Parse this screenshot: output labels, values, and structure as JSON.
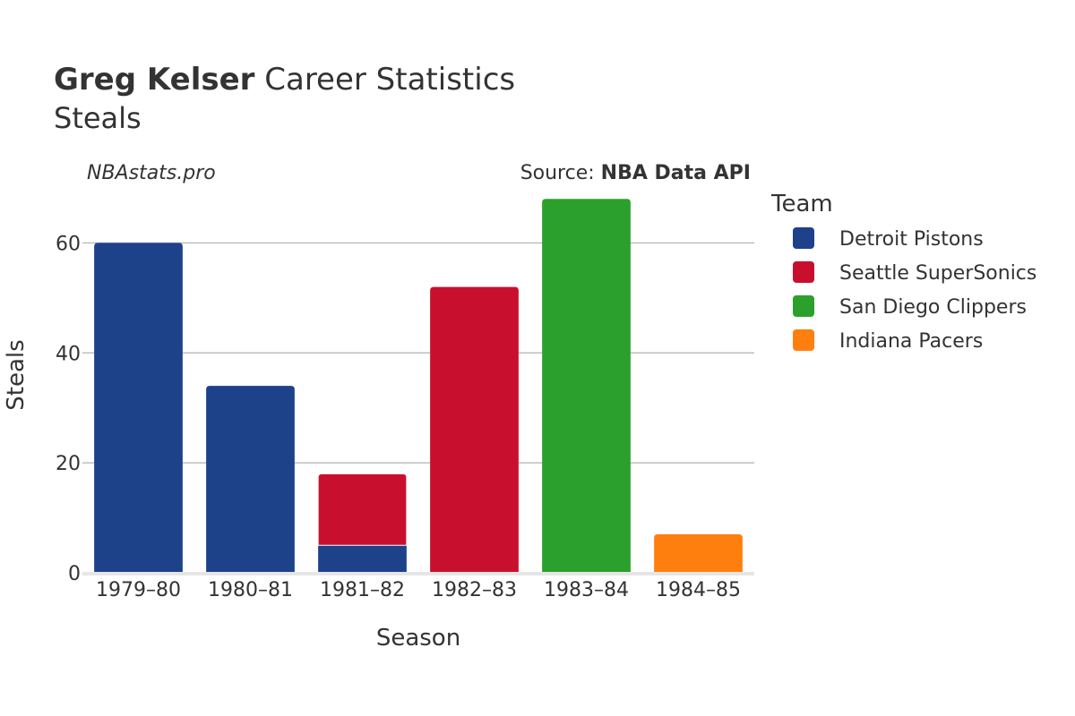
{
  "header": {
    "title_bold": "Greg Kelser",
    "title_rest": " Career Statistics",
    "subtitle": "Steals",
    "watermark": "NBAstats.pro",
    "source_prefix": "Source: ",
    "source_name": "NBA Data API"
  },
  "legend": {
    "title": "Team",
    "items": [
      {
        "label": "Detroit Pistons",
        "color": "#1d428a"
      },
      {
        "label": "Seattle SuperSonics",
        "color": "#c8102e"
      },
      {
        "label": "San Diego Clippers",
        "color": "#2ca02c"
      },
      {
        "label": "Indiana Pacers",
        "color": "#ff7f0e"
      }
    ]
  },
  "chart_data": {
    "type": "bar",
    "stacked": true,
    "categories": [
      "1979–80",
      "1980–81",
      "1981–82",
      "1982–83",
      "1983–84",
      "1984–85"
    ],
    "series": [
      {
        "name": "Detroit Pistons",
        "color": "#1d428a",
        "values": [
          60,
          34,
          5,
          0,
          0,
          0
        ]
      },
      {
        "name": "Seattle SuperSonics",
        "color": "#c8102e",
        "values": [
          0,
          0,
          13,
          52,
          0,
          0
        ]
      },
      {
        "name": "San Diego Clippers",
        "color": "#2ca02c",
        "values": [
          0,
          0,
          0,
          0,
          68,
          0
        ]
      },
      {
        "name": "Indiana Pacers",
        "color": "#ff7f0e",
        "values": [
          0,
          0,
          0,
          0,
          0,
          7
        ]
      }
    ],
    "xlabel": "Season",
    "ylabel": "Steals",
    "ylim": [
      0,
      70
    ],
    "yticks": [
      0,
      20,
      40,
      60
    ],
    "grid": true,
    "legend_position": "right"
  }
}
